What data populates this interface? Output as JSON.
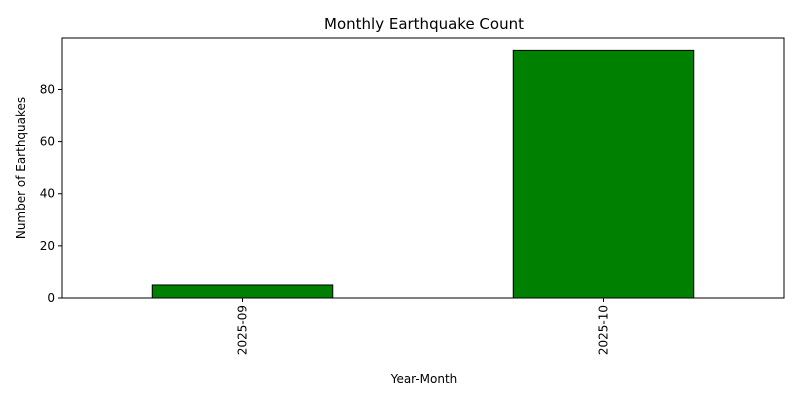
{
  "chart_data": {
    "type": "bar",
    "title": "Monthly Earthquake Count",
    "xlabel": "Year-Month",
    "ylabel": "Number of Earthquakes",
    "categories": [
      "2025-09",
      "2025-10"
    ],
    "values": [
      5,
      95
    ],
    "ylim": [
      0,
      99.75
    ],
    "yticks": [
      0,
      20,
      40,
      60,
      80
    ],
    "bar_color": "#008000",
    "bar_edge_color": "#000000",
    "grid": false,
    "legend": "none",
    "x_tick_rotation": "vertical"
  }
}
